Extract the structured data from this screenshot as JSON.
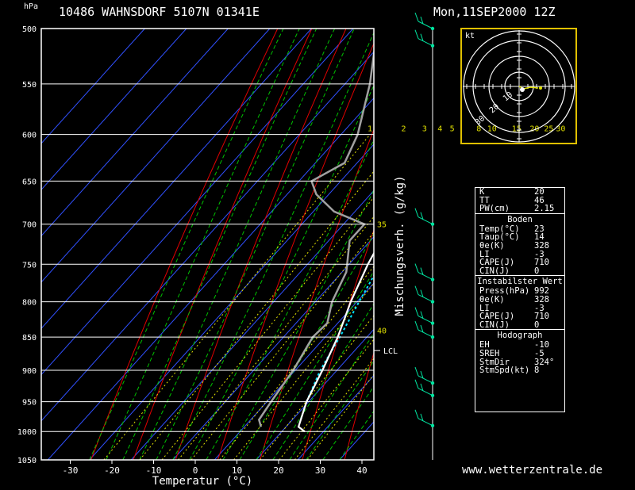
{
  "header": {
    "station": "10486 WAHNSDORF 5107N 01341E",
    "date": "Mon,11SEP2000 12Z",
    "pressure_unit": "hPa"
  },
  "footer": "www.wetterzentrale.de",
  "colors": {
    "temperature": "#ffffff",
    "dewpoint": "#a0a0a0",
    "parcel": "#00e5ff",
    "dry_adiabat": "#e00000",
    "moist_adiabat": "#00c000",
    "isotherm": "#3050ff",
    "mixing_ratio": "#e0e000",
    "hodo_frame": "#e0c000",
    "wind": "#00e5a0"
  },
  "chart_data": {
    "type": "skew-t",
    "xlabel": "Temperatur (°C)",
    "mixing_ratio_label": "Mischungsverh. (g/kg)",
    "pressure_levels": [
      500,
      550,
      600,
      650,
      700,
      750,
      800,
      850,
      900,
      950,
      1000,
      1050
    ],
    "temperature_ticks": [
      -30,
      -20,
      -10,
      0,
      10,
      20,
      30,
      40
    ],
    "mixing_ratio_labels": [
      "1",
      "2",
      "3",
      "4",
      "5",
      "8",
      "10",
      "15",
      "20",
      "25",
      "30"
    ],
    "right_labels": [
      {
        "p": 700,
        "text": "35"
      },
      {
        "p": 840,
        "text": "40"
      }
    ],
    "lcl": {
      "p": 870,
      "label": "LCL"
    },
    "temperature_profile": [
      {
        "p": 1000,
        "t": 25.5
      },
      {
        "p": 992,
        "t": 23
      },
      {
        "p": 950,
        "t": 19.5
      },
      {
        "p": 900,
        "t": 16.5
      },
      {
        "p": 850,
        "t": 13
      },
      {
        "p": 800,
        "t": 8.5
      },
      {
        "p": 750,
        "t": 4.5
      },
      {
        "p": 720,
        "t": 2.5
      },
      {
        "p": 700,
        "t": 0.5
      },
      {
        "p": 680,
        "t": -0.5
      },
      {
        "p": 650,
        "t": -3.5
      },
      {
        "p": 600,
        "t": -8
      },
      {
        "p": 550,
        "t": -13.5
      },
      {
        "p": 500,
        "t": -19.5
      }
    ],
    "dewpoint_profile": [
      {
        "p": 992,
        "t": 14
      },
      {
        "p": 980,
        "t": 12
      },
      {
        "p": 950,
        "t": 11
      },
      {
        "p": 900,
        "t": 9.5
      },
      {
        "p": 850,
        "t": 7
      },
      {
        "p": 830,
        "t": 7.5
      },
      {
        "p": 800,
        "t": 4
      },
      {
        "p": 760,
        "t": 1
      },
      {
        "p": 720,
        "t": -5
      },
      {
        "p": 700,
        "t": -5
      },
      {
        "p": 685,
        "t": -15
      },
      {
        "p": 665,
        "t": -23
      },
      {
        "p": 650,
        "t": -27
      },
      {
        "p": 630,
        "t": -23
      },
      {
        "p": 600,
        "t": -26
      },
      {
        "p": 550,
        "t": -34
      },
      {
        "p": 520,
        "t": -40
      },
      {
        "p": 500,
        "t": -42
      }
    ],
    "parcel_profile": [
      {
        "p": 980,
        "t": 22
      },
      {
        "p": 950,
        "t": 19.5
      },
      {
        "p": 900,
        "t": 16
      },
      {
        "p": 870,
        "t": 14.5
      },
      {
        "p": 850,
        "t": 13.5
      },
      {
        "p": 800,
        "t": 10.5
      },
      {
        "p": 750,
        "t": 7.5
      },
      {
        "p": 700,
        "t": 4
      },
      {
        "p": 650,
        "t": 0
      },
      {
        "p": 600,
        "t": -4.5
      },
      {
        "p": 550,
        "t": -10
      },
      {
        "p": 500,
        "t": -16.5
      }
    ],
    "wind_levels": [
      500,
      515,
      700,
      770,
      800,
      830,
      850,
      920,
      940,
      990
    ],
    "hodograph": {
      "unit_label": "kt",
      "ring_labels": [
        "10",
        "20",
        "30"
      ]
    }
  },
  "params": {
    "top": [
      {
        "k": "K",
        "v": "20"
      },
      {
        "k": "TT",
        "v": "46"
      },
      {
        "k": "PW(cm)",
        "v": "2.15"
      }
    ],
    "boden_title": "Boden",
    "boden": [
      {
        "k": "Temp(°C)",
        "v": "23"
      },
      {
        "k": "Taup(°C)",
        "v": "14"
      },
      {
        "k": "θe(K)",
        "v": "328"
      },
      {
        "k": "LI",
        "v": "-3"
      },
      {
        "k": "CAPE(J)",
        "v": "710"
      },
      {
        "k": "CIN(J)",
        "v": "0"
      }
    ],
    "instab_title": "Instabilster Wert",
    "instab": [
      {
        "k": "Press(hPa)",
        "v": "992"
      },
      {
        "k": "θe(K)",
        "v": "328"
      },
      {
        "k": "LI",
        "v": "-3"
      },
      {
        "k": "CAPE(J)",
        "v": "710"
      },
      {
        "k": "CIN(J)",
        "v": "0"
      }
    ],
    "hodo_title": "Hodograph",
    "hodo": [
      {
        "k": "EH",
        "v": "-10"
      },
      {
        "k": "SREH",
        "v": "-5"
      },
      {
        "k": "StmDir",
        "v": "324°"
      },
      {
        "k": "StmSpd(kt)",
        "v": "8"
      }
    ]
  }
}
